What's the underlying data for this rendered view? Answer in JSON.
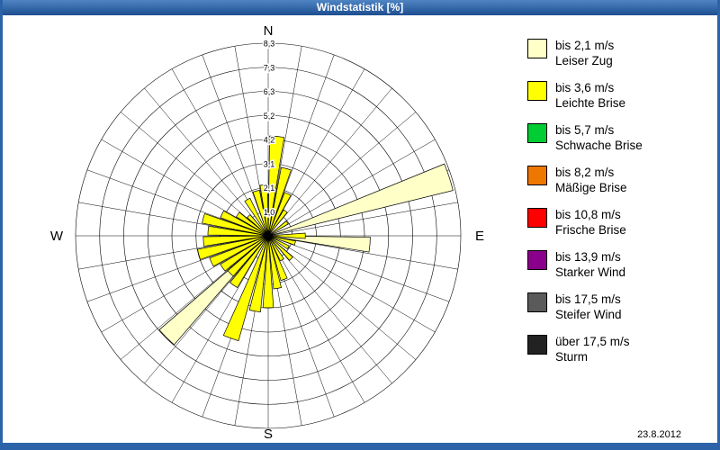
{
  "window": {
    "title": "Windstatistik [%]",
    "date": "23.8.2012"
  },
  "chart_data": {
    "type": "wind_rose",
    "title": "Windstatistik [%]",
    "units": "%",
    "rings": 8,
    "ring_max": 8.3,
    "ring_labels": [
      "1,0",
      "2,1",
      "3,1",
      "4,2",
      "5,2",
      "6,3",
      "7,3",
      "8,3"
    ],
    "sector_deg": 10,
    "petal_halfwidth_deg": 4.2,
    "grid": "polar, 8 concentric rings, spokes every 10 degrees",
    "legend_position": "right",
    "compass": {
      "n": "N",
      "e": "E",
      "s": "S",
      "w": "W"
    },
    "speed_classes": [
      {
        "label": "bis 2,1 m/s",
        "name": "Leiser Zug",
        "color": "#FFFFC8"
      },
      {
        "label": "bis 3,6 m/s",
        "name": "Leichte Brise",
        "color": "#FFFF00"
      },
      {
        "label": "bis 5,7 m/s",
        "name": "Schwache Brise",
        "color": "#00CC33"
      },
      {
        "label": "bis 8,2 m/s",
        "name": "Mäßige Brise",
        "color": "#EE7700"
      },
      {
        "label": "bis 10,8 m/s",
        "name": "Frische Brise",
        "color": "#FF0000"
      },
      {
        "label": "bis 13,9 m/s",
        "name": "Starker Wind",
        "color": "#8B008B"
      },
      {
        "label": "bis 17,5 m/s",
        "name": "Steifer Wind",
        "color": "#5A5A5A"
      },
      {
        "label": "über 17,5 m/s",
        "name": "Sturm",
        "color": "#222222"
      }
    ],
    "petals": [
      {
        "dir": 72,
        "class": 0,
        "value": 8.2
      },
      {
        "dir": 95,
        "class": 0,
        "value": 4.4
      },
      {
        "dir": 225,
        "class": 0,
        "value": 6.2
      },
      {
        "dir": 355,
        "class": 1,
        "value": 2.2
      },
      {
        "dir": 5,
        "class": 1,
        "value": 4.3
      },
      {
        "dir": 15,
        "class": 1,
        "value": 3.0
      },
      {
        "dir": 25,
        "class": 1,
        "value": 2.0
      },
      {
        "dir": 35,
        "class": 1,
        "value": 1.3
      },
      {
        "dir": 55,
        "class": 1,
        "value": 1.0
      },
      {
        "dir": 90,
        "class": 1,
        "value": 1.6
      },
      {
        "dir": 105,
        "class": 1,
        "value": 1.2
      },
      {
        "dir": 120,
        "class": 1,
        "value": 1.0
      },
      {
        "dir": 135,
        "class": 1,
        "value": 1.4
      },
      {
        "dir": 150,
        "class": 1,
        "value": 1.2
      },
      {
        "dir": 160,
        "class": 1,
        "value": 2.0
      },
      {
        "dir": 170,
        "class": 1,
        "value": 2.3
      },
      {
        "dir": 180,
        "class": 1,
        "value": 3.1
      },
      {
        "dir": 190,
        "class": 1,
        "value": 3.3
      },
      {
        "dir": 200,
        "class": 1,
        "value": 4.7
      },
      {
        "dir": 215,
        "class": 1,
        "value": 2.6
      },
      {
        "dir": 225,
        "class": 1,
        "value": 2.3
      },
      {
        "dir": 235,
        "class": 1,
        "value": 2.4
      },
      {
        "dir": 245,
        "class": 1,
        "value": 2.7
      },
      {
        "dir": 255,
        "class": 1,
        "value": 3.1
      },
      {
        "dir": 265,
        "class": 1,
        "value": 2.8
      },
      {
        "dir": 275,
        "class": 1,
        "value": 2.6
      },
      {
        "dir": 285,
        "class": 1,
        "value": 2.9
      },
      {
        "dir": 295,
        "class": 1,
        "value": 2.2
      },
      {
        "dir": 305,
        "class": 1,
        "value": 1.6
      },
      {
        "dir": 315,
        "class": 1,
        "value": 1.2
      },
      {
        "dir": 330,
        "class": 1,
        "value": 1.8
      },
      {
        "dir": 345,
        "class": 1,
        "value": 2.0
      }
    ]
  }
}
